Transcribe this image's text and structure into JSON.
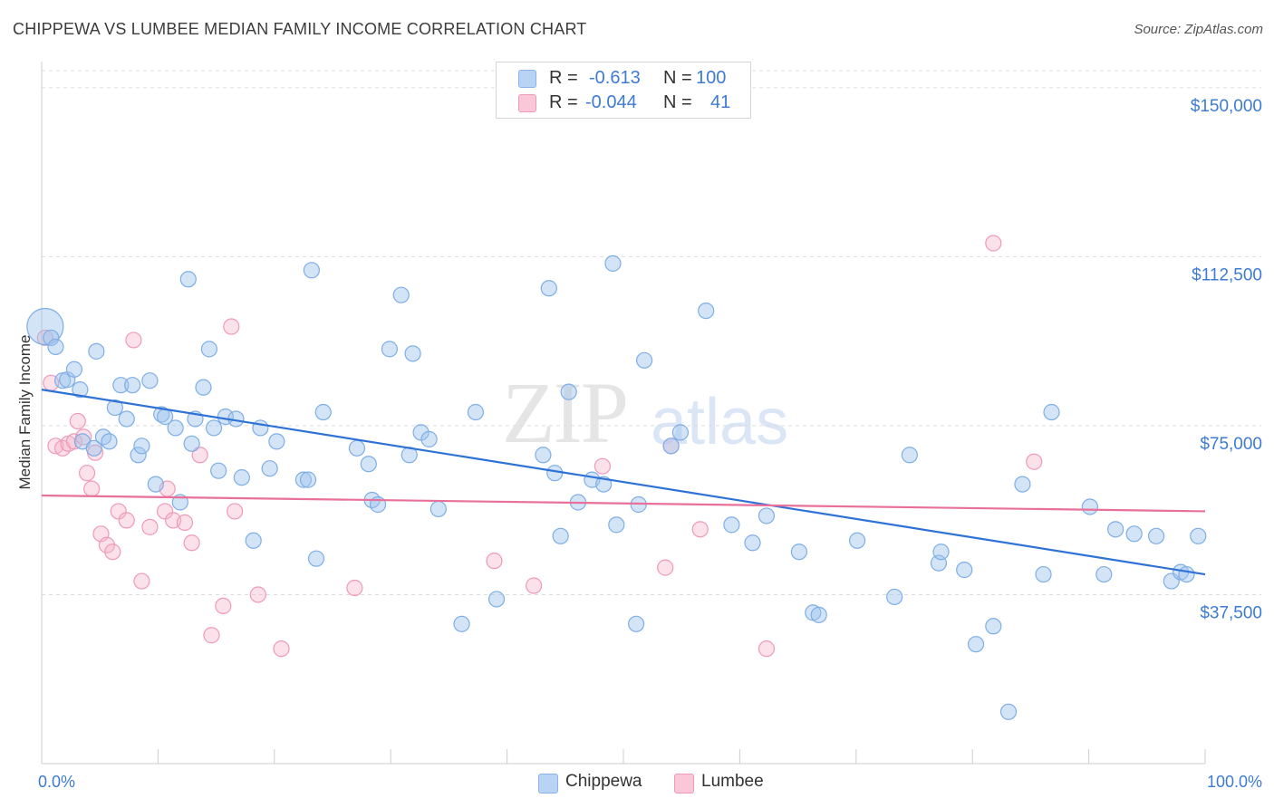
{
  "title": "CHIPPEWA VS LUMBEE MEDIAN FAMILY INCOME CORRELATION CHART",
  "source": "Source: ZipAtlas.com",
  "watermark": {
    "zip": "ZIP",
    "atlas": "atlas"
  },
  "legend": {
    "rows": [
      {
        "r_label": "R =",
        "r_value": "-0.613",
        "n_label": "N =",
        "n_value": "100"
      },
      {
        "r_label": "R =",
        "r_value": "-0.044",
        "n_label": "N =",
        "n_value": "41"
      }
    ]
  },
  "chart_data": {
    "type": "scatter",
    "title": "CHIPPEWA VS LUMBEE MEDIAN FAMILY INCOME CORRELATION CHART",
    "xlabel": "",
    "ylabel": "Median Family Income",
    "xlim": [
      0,
      100
    ],
    "ylim": [
      0,
      155000
    ],
    "x_tick_labels": [
      "0.0%",
      "100.0%"
    ],
    "y_ticks": [
      37500,
      75000,
      112500,
      150000
    ],
    "y_tick_labels": [
      "$37,500",
      "$75,000",
      "$112,500",
      "$150,000"
    ],
    "grid": true,
    "legend_position": "top-center",
    "colors": {
      "Chippewa": "#9ec3ee",
      "Lumbee": "#f4b3c8",
      "Chippewa_line": "#2f72d6",
      "Lumbee_line": "#e8709a"
    },
    "series": [
      {
        "name": "Chippewa",
        "R": -0.613,
        "N": 100,
        "trend": [
          [
            0,
            83000
          ],
          [
            100,
            42000
          ]
        ],
        "points": [
          [
            0.3,
            97000
          ],
          [
            0.8,
            94500
          ],
          [
            1.2,
            92500
          ],
          [
            1.8,
            85000
          ],
          [
            2.2,
            85200
          ],
          [
            2.8,
            87500
          ],
          [
            3.3,
            83000
          ],
          [
            3.5,
            71500
          ],
          [
            4.5,
            70000
          ],
          [
            4.7,
            91500
          ],
          [
            5.3,
            72500
          ],
          [
            5.8,
            71500
          ],
          [
            6.3,
            79000
          ],
          [
            6.8,
            84000
          ],
          [
            7.3,
            76500
          ],
          [
            7.8,
            84000
          ],
          [
            8.3,
            68500
          ],
          [
            8.6,
            70500
          ],
          [
            9.3,
            85000
          ],
          [
            9.8,
            62000
          ],
          [
            10.3,
            77500
          ],
          [
            10.6,
            77000
          ],
          [
            11.5,
            74500
          ],
          [
            11.9,
            58000
          ],
          [
            12.6,
            107500
          ],
          [
            12.9,
            71000
          ],
          [
            13.2,
            76500
          ],
          [
            13.9,
            83500
          ],
          [
            14.4,
            92000
          ],
          [
            14.8,
            74500
          ],
          [
            15.2,
            65000
          ],
          [
            15.8,
            77000
          ],
          [
            16.7,
            76500
          ],
          [
            17.2,
            63500
          ],
          [
            18.2,
            49500
          ],
          [
            18.8,
            74500
          ],
          [
            19.6,
            65500
          ],
          [
            20.2,
            71500
          ],
          [
            22.5,
            63000
          ],
          [
            22.9,
            63000
          ],
          [
            23.2,
            109500
          ],
          [
            23.6,
            45500
          ],
          [
            24.2,
            78000
          ],
          [
            27.1,
            70000
          ],
          [
            28.1,
            66500
          ],
          [
            28.4,
            58500
          ],
          [
            28.9,
            57500
          ],
          [
            29.9,
            92000
          ],
          [
            30.9,
            104000
          ],
          [
            31.6,
            68500
          ],
          [
            31.9,
            91000
          ],
          [
            32.6,
            73500
          ],
          [
            33.3,
            72000
          ],
          [
            34.1,
            56500
          ],
          [
            36.1,
            31000
          ],
          [
            37.3,
            78000
          ],
          [
            39.1,
            36500
          ],
          [
            43.1,
            68500
          ],
          [
            43.6,
            105500
          ],
          [
            44.1,
            64500
          ],
          [
            44.6,
            50500
          ],
          [
            45.3,
            82500
          ],
          [
            46.1,
            58000
          ],
          [
            47.3,
            63000
          ],
          [
            48.3,
            62000
          ],
          [
            49.1,
            111000
          ],
          [
            49.4,
            53000
          ],
          [
            51.1,
            31000
          ],
          [
            51.3,
            57500
          ],
          [
            51.8,
            89500
          ],
          [
            54.1,
            70500
          ],
          [
            54.9,
            73500
          ],
          [
            57.1,
            100500
          ],
          [
            59.3,
            53000
          ],
          [
            61.1,
            49000
          ],
          [
            62.3,
            55000
          ],
          [
            65.1,
            47000
          ],
          [
            66.3,
            33500
          ],
          [
            66.8,
            33000
          ],
          [
            70.1,
            49500
          ],
          [
            73.3,
            37000
          ],
          [
            74.6,
            68500
          ],
          [
            77.1,
            44500
          ],
          [
            77.3,
            47000
          ],
          [
            79.3,
            43000
          ],
          [
            80.3,
            26500
          ],
          [
            81.8,
            30500
          ],
          [
            83.1,
            11500
          ],
          [
            84.3,
            62000
          ],
          [
            86.1,
            42000
          ],
          [
            86.8,
            78000
          ],
          [
            90.1,
            57000
          ],
          [
            91.3,
            42000
          ],
          [
            92.3,
            52000
          ],
          [
            93.9,
            51000
          ],
          [
            95.8,
            50500
          ],
          [
            97.1,
            40500
          ],
          [
            97.9,
            42500
          ],
          [
            98.4,
            42000
          ],
          [
            99.4,
            50500
          ]
        ]
      },
      {
        "name": "Lumbee",
        "R": -0.044,
        "N": 41,
        "trend": [
          [
            0,
            59500
          ],
          [
            100,
            56000
          ]
        ],
        "points": [
          [
            0.3,
            94500
          ],
          [
            0.8,
            84500
          ],
          [
            1.2,
            70500
          ],
          [
            1.8,
            70000
          ],
          [
            2.3,
            71000
          ],
          [
            2.8,
            71500
          ],
          [
            3.1,
            76000
          ],
          [
            3.6,
            72500
          ],
          [
            3.9,
            64500
          ],
          [
            4.3,
            61000
          ],
          [
            4.6,
            69000
          ],
          [
            5.1,
            51000
          ],
          [
            5.6,
            48500
          ],
          [
            6.1,
            47000
          ],
          [
            6.6,
            56000
          ],
          [
            7.3,
            54000
          ],
          [
            7.9,
            94000
          ],
          [
            8.6,
            40500
          ],
          [
            9.3,
            52500
          ],
          [
            10.6,
            56000
          ],
          [
            10.8,
            61000
          ],
          [
            11.3,
            54000
          ],
          [
            12.3,
            53500
          ],
          [
            12.9,
            49000
          ],
          [
            13.6,
            68500
          ],
          [
            14.6,
            28500
          ],
          [
            15.6,
            35000
          ],
          [
            16.3,
            97000
          ],
          [
            16.6,
            56000
          ],
          [
            18.6,
            37500
          ],
          [
            20.6,
            25500
          ],
          [
            26.9,
            39000
          ],
          [
            38.9,
            45000
          ],
          [
            42.3,
            39500
          ],
          [
            48.2,
            66000
          ],
          [
            53.6,
            43500
          ],
          [
            54.1,
            70500
          ],
          [
            56.6,
            52000
          ],
          [
            62.3,
            25500
          ],
          [
            81.8,
            115500
          ],
          [
            85.3,
            67000
          ]
        ]
      }
    ]
  }
}
